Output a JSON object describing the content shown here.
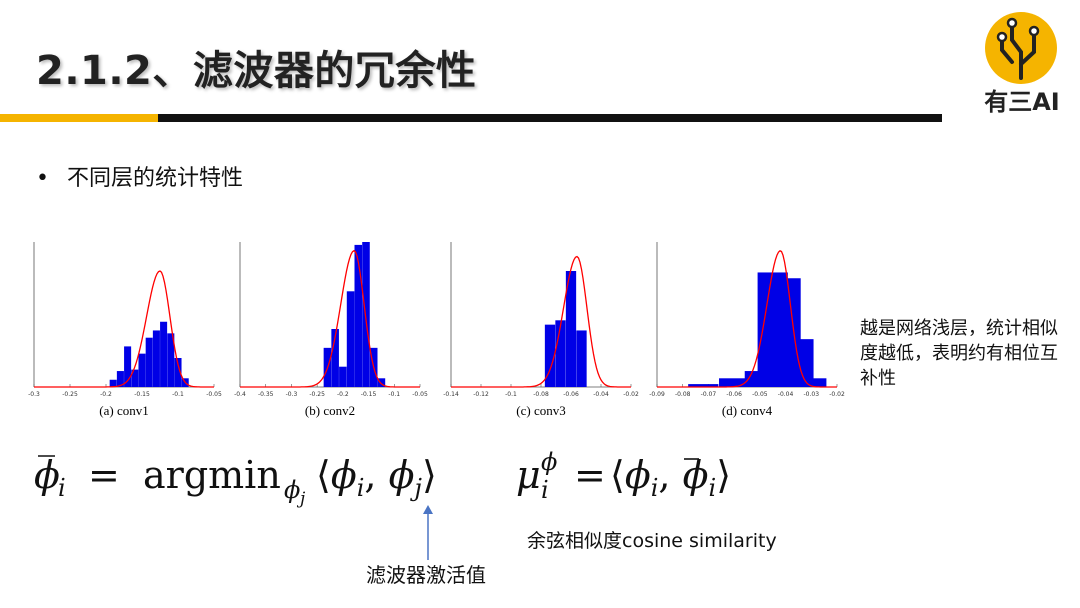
{
  "slide": {
    "title": "2.1.2、滤波器的冗余性",
    "logo_text": "有三AI",
    "bullet": "不同层的统计特性",
    "side_note": "越是网络浅层，统计相似度越低，表明约有相位互补性",
    "formula_left_eq": "=",
    "formula_argmin": "argmin",
    "formula_right_eq": "=",
    "cos_note": "余弦相似度cosine similarity",
    "act_note": "滤波器激活值",
    "colors": {
      "accent": "#f5b400",
      "bar": "#0000e6",
      "curve": "#ff0000"
    }
  },
  "chart_data": [
    {
      "type": "bar",
      "caption": "(a) conv1",
      "xlim": [
        -0.3,
        -0.05
      ],
      "xticks": [
        "-0.3",
        "-0.25",
        "-0.2",
        "-0.15",
        "-0.1",
        "-0.05"
      ],
      "x": [
        -0.19,
        -0.18,
        -0.17,
        -0.16,
        -0.15,
        -0.14,
        -0.13,
        -0.12,
        -0.11,
        -0.1,
        -0.09
      ],
      "values": [
        0.05,
        0.11,
        0.28,
        0.12,
        0.23,
        0.34,
        0.39,
        0.45,
        0.37,
        0.2,
        0.06
      ],
      "curve_peak_x": -0.125,
      "curve_peak": 0.8
    },
    {
      "type": "bar",
      "caption": "(b) conv2",
      "xlim": [
        -0.4,
        -0.05
      ],
      "xticks": [
        "-0.4",
        "-0.35",
        "-0.3",
        "-0.25",
        "-0.2",
        "-0.15",
        "-0.1",
        "-0.05"
      ],
      "x": [
        -0.23,
        -0.215,
        -0.2,
        -0.185,
        -0.17,
        -0.155,
        -0.14,
        -0.125
      ],
      "values": [
        0.27,
        0.4,
        0.14,
        0.66,
        0.98,
        1.0,
        0.27,
        0.06
      ],
      "curve_peak_x": -0.178,
      "curve_peak": 0.94
    },
    {
      "type": "bar",
      "caption": "(c) conv3",
      "xlim": [
        -0.14,
        -0.02
      ],
      "xticks": [
        "-0.14",
        "-0.12",
        "-0.1",
        "-0.08",
        "-0.06",
        "-0.04",
        "-0.02"
      ],
      "x": [
        -0.074,
        -0.067,
        -0.06,
        -0.053
      ],
      "values": [
        0.43,
        0.46,
        0.8,
        0.39
      ],
      "curve_peak_x": -0.056,
      "curve_peak": 0.9
    },
    {
      "type": "bar",
      "caption": "(d) conv4",
      "xlim": [
        -0.09,
        -0.02
      ],
      "xticks": [
        "-0.09",
        "-0.08",
        "-0.07",
        "-0.06",
        "-0.05",
        "-0.04",
        "-0.03",
        "-0.02"
      ],
      "x": [
        -0.072,
        -0.06,
        -0.055,
        -0.05,
        -0.045,
        -0.04,
        -0.035,
        -0.03
      ],
      "values": [
        0.02,
        0.06,
        0.02,
        0.11,
        0.79,
        0.75,
        0.33,
        0.06
      ],
      "curve_peak_x": -0.042,
      "curve_peak": 0.94
    }
  ]
}
